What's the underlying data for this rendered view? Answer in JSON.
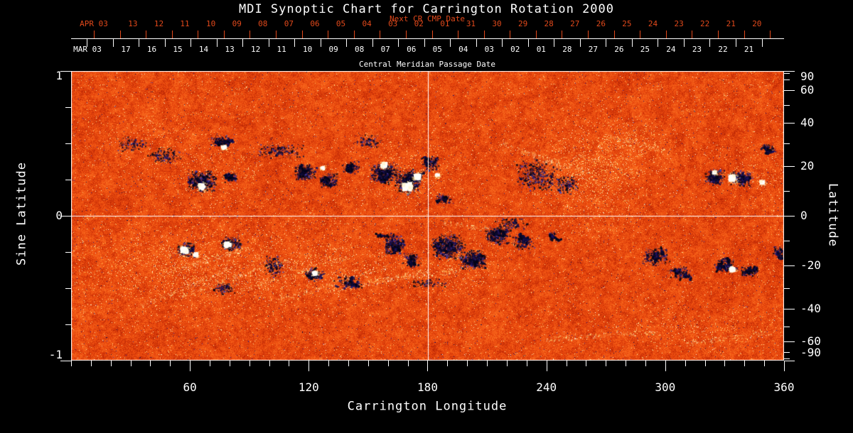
{
  "title": "MDI Synoptic Chart for Carrington Rotation 2000",
  "colors": {
    "background": "#000000",
    "axis_text": "#ffffff",
    "date_red": "#e2491b",
    "quiet_sun": "#e8500f",
    "negative_field": "#0a0a3c",
    "positive_field": "#ffffff",
    "plage": "#ffd24d"
  },
  "top_axis": {
    "next_label": "Next CR CMP Date",
    "next_month": "APR 03",
    "next_dates": [
      "13",
      "12",
      "11",
      "10",
      "09",
      "08",
      "07",
      "06",
      "05",
      "04",
      "03",
      "02",
      "01",
      "31",
      "30",
      "29",
      "28",
      "27",
      "26",
      "25",
      "24",
      "23",
      "22",
      "21",
      "20"
    ],
    "cmp_label": "Central Meridian Passage Date",
    "cmp_month": "MAR 03",
    "cmp_dates": [
      "17",
      "16",
      "15",
      "14",
      "13",
      "12",
      "11",
      "10",
      "09",
      "08",
      "07",
      "06",
      "05",
      "04",
      "03",
      "02",
      "01",
      "28",
      "27",
      "26",
      "25",
      "24",
      "23",
      "22",
      "21"
    ]
  },
  "x_axis": {
    "label": "Carrington Longitude",
    "ticks": [
      60,
      120,
      180,
      240,
      300,
      360
    ],
    "range": [
      0,
      360
    ],
    "minor_step": 10
  },
  "y_left": {
    "label": "Sine Latitude",
    "ticks": [
      1,
      0,
      -1
    ],
    "range": [
      -1,
      1
    ],
    "minor_step": 0.25
  },
  "y_right": {
    "label": "Latitude",
    "ticks": [
      90,
      60,
      40,
      20,
      0,
      -20,
      -40,
      -60,
      -90
    ],
    "minor_step_deg": 10,
    "spacing": "sine"
  },
  "chart_data": {
    "type": "heatmap",
    "title": "MDI Synoptic Chart for Carrington Rotation 2000",
    "value": "photospheric magnetic field polarity (magnetogram)",
    "palette_meaning": {
      "orange": "quiet Sun / weak field",
      "dark_blue_black": "negative polarity",
      "white_yellow": "positive polarity / plage"
    },
    "x": {
      "label": "Carrington Longitude",
      "range": [
        0,
        360
      ],
      "major_ticks": [
        60,
        120,
        180,
        240,
        300,
        360
      ],
      "minor_step": 10
    },
    "y": {
      "label": "Sine Latitude",
      "range": [
        -1,
        1
      ],
      "major_ticks": [
        1,
        0,
        -1
      ],
      "minor_step": 0.25
    },
    "y2": {
      "label": "Latitude",
      "ticks": [
        90,
        60,
        40,
        20,
        0,
        -20,
        -40,
        -60,
        -90
      ],
      "spacing": "sine"
    },
    "crosshair": {
      "longitude": 180,
      "sine_latitude": 0
    },
    "region_fields": [
      "longitude_deg",
      "sine_latitude",
      "width_deg",
      "height_sinlat",
      "strength"
    ],
    "negative_regions": [
      [
        75,
        0.52,
        9,
        0.07,
        0.7
      ],
      [
        66,
        0.24,
        13,
        0.13,
        0.95
      ],
      [
        80,
        0.27,
        7,
        0.07,
        0.5
      ],
      [
        47,
        0.42,
        16,
        0.12,
        0.3
      ],
      [
        30,
        0.5,
        14,
        0.1,
        0.25
      ],
      [
        105,
        0.45,
        22,
        0.1,
        0.3
      ],
      [
        118,
        0.3,
        10,
        0.1,
        0.75
      ],
      [
        130,
        0.25,
        9,
        0.09,
        0.65
      ],
      [
        141,
        0.34,
        8,
        0.08,
        0.55
      ],
      [
        150,
        0.52,
        14,
        0.08,
        0.3
      ],
      [
        158,
        0.3,
        12,
        0.13,
        0.9
      ],
      [
        170,
        0.24,
        12,
        0.15,
        0.95
      ],
      [
        181,
        0.36,
        8,
        0.1,
        0.6
      ],
      [
        188,
        0.12,
        7,
        0.07,
        0.55
      ],
      [
        235,
        0.28,
        20,
        0.2,
        0.35
      ],
      [
        250,
        0.22,
        10,
        0.12,
        0.4
      ],
      [
        325,
        0.27,
        9,
        0.1,
        0.8
      ],
      [
        338,
        0.26,
        11,
        0.1,
        0.8
      ],
      [
        352,
        0.47,
        6,
        0.07,
        0.5
      ],
      [
        58,
        -0.23,
        8,
        0.09,
        0.75
      ],
      [
        81,
        -0.19,
        9,
        0.09,
        0.7
      ],
      [
        102,
        -0.35,
        9,
        0.14,
        0.4
      ],
      [
        77,
        -0.5,
        10,
        0.08,
        0.45
      ],
      [
        123,
        -0.4,
        9,
        0.08,
        0.65
      ],
      [
        140,
        -0.46,
        13,
        0.08,
        0.5
      ],
      [
        163,
        -0.19,
        10,
        0.13,
        0.8
      ],
      [
        172,
        -0.3,
        8,
        0.09,
        0.6
      ],
      [
        190,
        -0.21,
        15,
        0.15,
        0.9
      ],
      [
        203,
        -0.3,
        12,
        0.12,
        0.85
      ],
      [
        215,
        -0.13,
        12,
        0.11,
        0.8
      ],
      [
        228,
        -0.18,
        10,
        0.09,
        0.6
      ],
      [
        243,
        -0.13,
        4,
        0.05,
        0.5
      ],
      [
        295,
        -0.28,
        12,
        0.11,
        0.55
      ],
      [
        307,
        -0.39,
        10,
        0.08,
        0.55
      ],
      [
        330,
        -0.34,
        10,
        0.08,
        0.7
      ],
      [
        342,
        -0.38,
        8,
        0.07,
        0.7
      ],
      [
        357,
        -0.25,
        6,
        0.08,
        0.5
      ],
      [
        222,
        -0.05,
        14,
        0.07,
        0.4
      ],
      [
        180,
        -0.46,
        18,
        0.06,
        0.3
      ]
    ],
    "spot_fields": [
      "longitude_deg",
      "sine_latitude",
      "radius_px"
    ],
    "positive_spots": [
      [
        77,
        0.47,
        3
      ],
      [
        66,
        0.2,
        4.5
      ],
      [
        127,
        0.33,
        2.5
      ],
      [
        158,
        0.35,
        4
      ],
      [
        170,
        0.2,
        6
      ],
      [
        175,
        0.27,
        4.5
      ],
      [
        185,
        0.28,
        2.5
      ],
      [
        57,
        -0.24,
        5
      ],
      [
        63,
        -0.27,
        3
      ],
      [
        79,
        -0.2,
        4
      ],
      [
        123,
        -0.4,
        3
      ],
      [
        334,
        0.26,
        5
      ],
      [
        349,
        0.23,
        3
      ],
      [
        325,
        0.3,
        2.5
      ],
      [
        334,
        -0.37,
        3.5
      ]
    ],
    "plage_fields": [
      "longitude_deg",
      "sine_latitude",
      "width_deg",
      "height_sinlat",
      "strength"
    ],
    "plage_patches": [
      [
        262,
        0.3,
        30,
        0.35,
        0.8
      ],
      [
        285,
        0.5,
        18,
        0.15,
        0.5
      ],
      [
        60,
        -0.35,
        60,
        0.3,
        0.6
      ],
      [
        130,
        -0.35,
        40,
        0.25,
        0.5
      ],
      [
        170,
        0.3,
        25,
        0.25,
        0.4
      ],
      [
        70,
        0.3,
        25,
        0.2,
        0.35
      ],
      [
        195,
        -0.35,
        25,
        0.2,
        0.45
      ],
      [
        310,
        -0.75,
        40,
        0.15,
        0.3
      ],
      [
        345,
        0.3,
        20,
        0.15,
        0.35
      ],
      [
        40,
        0.55,
        25,
        0.15,
        0.3
      ]
    ],
    "filament_channel_fields": [
      "lon1",
      "slat1",
      "lon2",
      "slat2"
    ],
    "bright_streaks": [
      [
        35,
        -0.62,
        85,
        -0.33
      ],
      [
        55,
        -0.55,
        110,
        -0.3
      ],
      [
        85,
        -0.52,
        140,
        -0.28
      ],
      [
        105,
        -0.58,
        160,
        -0.35
      ],
      [
        130,
        -0.52,
        180,
        -0.38
      ],
      [
        45,
        -0.4,
        90,
        -0.22
      ],
      [
        150,
        -0.45,
        195,
        -0.38
      ],
      [
        215,
        0.52,
        248,
        0.33
      ],
      [
        232,
        0.44,
        262,
        0.3
      ],
      [
        255,
        0.42,
        285,
        0.3
      ],
      [
        272,
        0.55,
        300,
        0.45
      ],
      [
        188,
        -0.05,
        215,
        -0.1
      ],
      [
        240,
        -0.85,
        295,
        -0.8
      ],
      [
        310,
        -0.88,
        355,
        -0.8
      ]
    ]
  }
}
